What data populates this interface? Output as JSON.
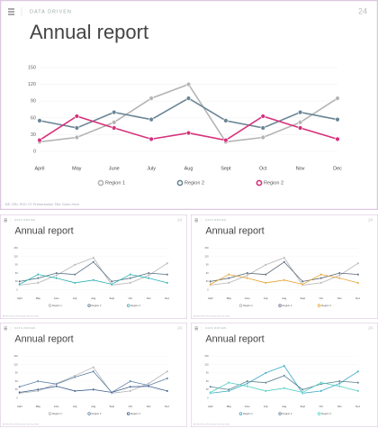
{
  "slides": [
    {
      "brand": "DATA DRIVEN",
      "page": "24",
      "footer": "BE ORL PHC 07 Presentation Title Goes Here"
    },
    {
      "brand": "DATA DRIVEN",
      "page": "24",
      "footer": "BE ORL PHC 07 Presentation Title Goes Here"
    },
    {
      "brand": "DATA DRIVEN",
      "page": "24",
      "footer": "BE ORL PHC 07 Presentation Title Goes Here"
    },
    {
      "brand": "DATA DRIVEN",
      "page": "24",
      "footer": "BE ORL PHC 07 Presentation Title Goes Here"
    },
    {
      "brand": "DATA DRIVEN",
      "page": "24",
      "footer": "BE ORL PHC 07 Presentation Title Goes Here"
    }
  ],
  "chart_data": [
    {
      "type": "line",
      "title": "Annual report",
      "categories": [
        "April",
        "May",
        "June",
        "July",
        "Aug",
        "Sept",
        "Oct",
        "Nov",
        "Dec"
      ],
      "ylim": [
        0,
        150
      ],
      "yticks": [
        0,
        30,
        60,
        90,
        120,
        150
      ],
      "grid": true,
      "series": [
        {
          "name": "Region 1",
          "color": "#b4b4b4",
          "values": [
            17,
            25,
            52,
            95,
            120,
            17,
            25,
            52,
            95
          ]
        },
        {
          "name": "Region 2",
          "color": "#6a8595",
          "values": [
            55,
            42,
            70,
            57,
            95,
            55,
            42,
            70,
            57
          ]
        },
        {
          "name": "Region 2",
          "color": "#d6307a",
          "values": [
            20,
            63,
            42,
            22,
            33,
            20,
            63,
            42,
            22
          ]
        }
      ]
    },
    {
      "type": "line",
      "title": "Annual report",
      "categories": [
        "April",
        "May",
        "June",
        "July",
        "Aug",
        "Sept",
        "Oct",
        "Nov",
        "Dec"
      ],
      "ylim": [
        0,
        150
      ],
      "yticks": [
        0,
        30,
        60,
        90,
        120,
        150
      ],
      "grid": true,
      "series": [
        {
          "name": "Region 1",
          "color": "#b4b4b4",
          "values": [
            17,
            25,
            52,
            90,
            115,
            17,
            25,
            52,
            95
          ]
        },
        {
          "name": "Region 2",
          "color": "#5a7286",
          "values": [
            30,
            42,
            60,
            55,
            100,
            30,
            42,
            60,
            55
          ]
        },
        {
          "name": "Region 2",
          "color": "#2bb3b3",
          "values": [
            20,
            55,
            42,
            25,
            35,
            20,
            55,
            42,
            25
          ]
        }
      ]
    },
    {
      "type": "line",
      "title": "Annual report",
      "categories": [
        "April",
        "May",
        "June",
        "July",
        "Aug",
        "Sept",
        "Oct",
        "Nov",
        "Dec"
      ],
      "ylim": [
        0,
        150
      ],
      "yticks": [
        0,
        30,
        60,
        90,
        120,
        150
      ],
      "grid": true,
      "series": [
        {
          "name": "Region 1",
          "color": "#b4b4b4",
          "values": [
            17,
            25,
            52,
            90,
            115,
            17,
            25,
            52,
            95
          ]
        },
        {
          "name": "Region 2",
          "color": "#5a6878",
          "values": [
            30,
            42,
            60,
            55,
            100,
            30,
            42,
            60,
            55
          ]
        },
        {
          "name": "Region 2",
          "color": "#e6a433",
          "values": [
            20,
            55,
            42,
            25,
            35,
            20,
            55,
            42,
            25
          ]
        }
      ]
    },
    {
      "type": "line",
      "title": "Annual report",
      "categories": [
        "April",
        "May",
        "June",
        "July",
        "Aug",
        "Sept",
        "Oct",
        "Nov",
        "Dec"
      ],
      "ylim": [
        0,
        150
      ],
      "yticks": [
        0,
        30,
        60,
        90,
        120,
        150
      ],
      "grid": true,
      "series": [
        {
          "name": "Region 1",
          "color": "#b4b4b4",
          "values": [
            17,
            25,
            52,
            80,
            110,
            17,
            25,
            52,
            95
          ]
        },
        {
          "name": "Region 2",
          "color": "#5b7ea6",
          "values": [
            40,
            60,
            50,
            75,
            95,
            20,
            60,
            45,
            70
          ]
        },
        {
          "name": "Region 2",
          "color": "#3a5a8c",
          "values": [
            20,
            30,
            42,
            25,
            30,
            20,
            40,
            42,
            25
          ]
        }
      ]
    },
    {
      "type": "line",
      "title": "Annual report",
      "categories": [
        "April",
        "May",
        "June",
        "July",
        "Aug",
        "Sept",
        "Oct",
        "Nov",
        "Dec"
      ],
      "ylim": [
        0,
        150
      ],
      "yticks": [
        0,
        30,
        60,
        90,
        120,
        150
      ],
      "grid": true,
      "series": [
        {
          "name": "Region 1",
          "color": "#3aa8c8",
          "values": [
            17,
            25,
            52,
            90,
            115,
            17,
            25,
            52,
            95
          ]
        },
        {
          "name": "Region 2",
          "color": "#5a8090",
          "values": [
            40,
            30,
            60,
            55,
            80,
            30,
            50,
            60,
            55
          ]
        },
        {
          "name": "Region 2",
          "color": "#4fd0c0",
          "values": [
            20,
            55,
            42,
            25,
            35,
            20,
            55,
            42,
            25
          ]
        }
      ]
    }
  ]
}
